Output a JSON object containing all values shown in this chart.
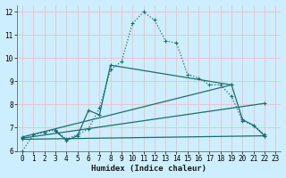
{
  "xlabel": "Humidex (Indice chaleur)",
  "bg_color": "#cceeff",
  "grid_color": "#ffb3b3",
  "line_color": "#1a6e6e",
  "xlim": [
    -0.5,
    23.5
  ],
  "ylim": [
    6,
    12.3
  ],
  "xticks": [
    0,
    1,
    2,
    3,
    4,
    5,
    6,
    7,
    8,
    9,
    10,
    11,
    12,
    13,
    14,
    15,
    16,
    17,
    18,
    19,
    20,
    21,
    22,
    23
  ],
  "yticks": [
    6,
    7,
    8,
    9,
    10,
    11,
    12
  ],
  "series": [
    {
      "x": [
        0,
        1,
        2,
        3,
        4,
        5,
        6,
        7,
        8,
        9,
        10,
        11,
        12,
        13,
        14,
        15,
        16,
        17,
        18,
        19,
        20,
        21,
        22
      ],
      "y": [
        6.0,
        6.7,
        6.8,
        6.9,
        6.5,
        6.7,
        6.95,
        7.85,
        9.5,
        9.85,
        11.5,
        12.0,
        11.65,
        10.75,
        10.65,
        9.3,
        9.15,
        8.85,
        8.85,
        8.35,
        7.3,
        7.1,
        6.7
      ],
      "linestyle": ":",
      "linewidth": 0.9
    },
    {
      "x": [
        3,
        4,
        5,
        6,
        7,
        8,
        19,
        20,
        21,
        22
      ],
      "y": [
        6.85,
        6.45,
        6.65,
        7.75,
        7.55,
        9.7,
        8.85,
        7.35,
        7.1,
        6.65
      ],
      "linestyle": "-",
      "linewidth": 0.9
    },
    {
      "x": [
        0,
        19
      ],
      "y": [
        6.6,
        8.85
      ],
      "linestyle": "-",
      "linewidth": 0.9
    },
    {
      "x": [
        0,
        22
      ],
      "y": [
        6.55,
        8.05
      ],
      "linestyle": "-",
      "linewidth": 0.9
    },
    {
      "x": [
        0,
        22
      ],
      "y": [
        6.5,
        6.65
      ],
      "linestyle": "-",
      "linewidth": 0.9
    }
  ]
}
